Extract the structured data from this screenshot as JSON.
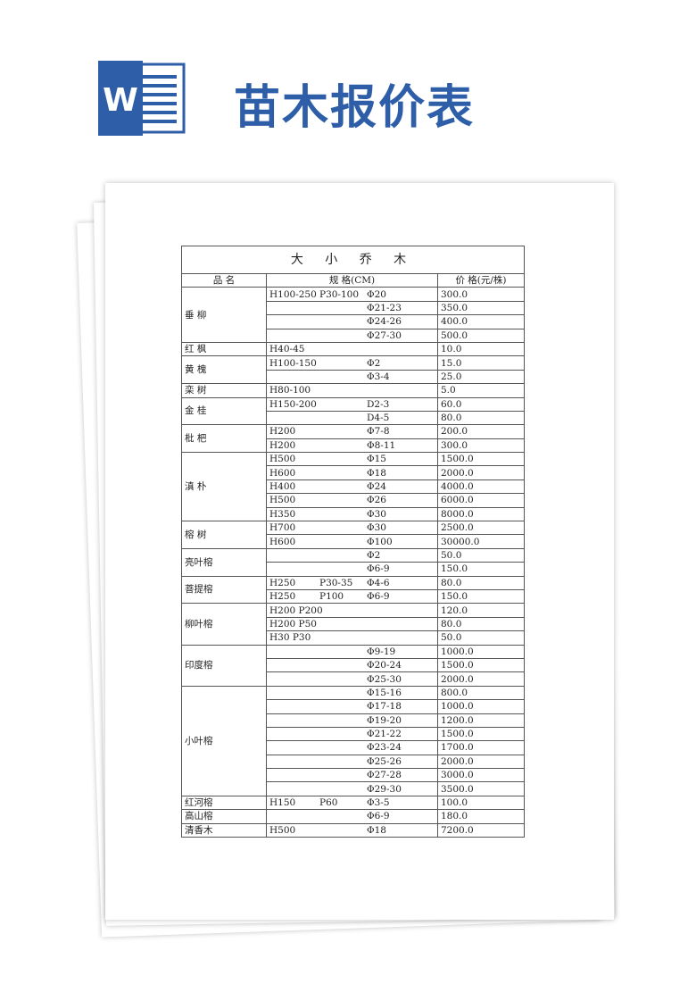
{
  "header": {
    "title": "苗木报价表",
    "icon": "word-icon",
    "accent": "#2e5ea8"
  },
  "table": {
    "title": "大 小 乔 木",
    "headers": [
      "品  名",
      "规  格(CM)",
      "价  格(元/株)"
    ],
    "groups": [
      {
        "name": "垂  柳",
        "rows": [
          [
            "H100-250",
            "P30-100",
            "Φ20",
            "300.0"
          ],
          [
            "",
            "",
            "Φ21-23",
            "350.0"
          ],
          [
            "",
            "",
            "Φ24-26",
            "400.0"
          ],
          [
            "",
            "",
            "Φ27-30",
            "500.0"
          ]
        ]
      },
      {
        "name": "红  枫",
        "rows": [
          [
            "H40-45",
            "",
            "",
            "10.0"
          ]
        ]
      },
      {
        "name": "黄  槐",
        "rows": [
          [
            "H100-150",
            "",
            "Φ2",
            "15.0"
          ],
          [
            "",
            "",
            "Φ3-4",
            "25.0"
          ]
        ]
      },
      {
        "name": "栾  树",
        "rows": [
          [
            "H80-100",
            "",
            "",
            "5.0"
          ]
        ]
      },
      {
        "name": "金  桂",
        "rows": [
          [
            "H150-200",
            "",
            "D2-3",
            "60.0"
          ],
          [
            "",
            "",
            "D4-5",
            "80.0"
          ]
        ]
      },
      {
        "name": "枇  杷",
        "rows": [
          [
            "H200",
            "",
            "Φ7-8",
            "200.0"
          ],
          [
            "H200",
            "",
            "Φ8-11",
            "300.0"
          ]
        ]
      },
      {
        "name": "滇  朴",
        "rows": [
          [
            "H500",
            "",
            "Φ15",
            "1500.0"
          ],
          [
            "H600",
            "",
            "Φ18",
            "2000.0"
          ],
          [
            "H400",
            "",
            "Φ24",
            "4000.0"
          ],
          [
            "H500",
            "",
            "Φ26",
            "6000.0"
          ],
          [
            "H350",
            "",
            "Φ30",
            "8000.0"
          ]
        ]
      },
      {
        "name": "榕  树",
        "rows": [
          [
            "H700",
            "",
            "Φ30",
            "2500.0"
          ],
          [
            "H600",
            "",
            "Φ100",
            "30000.0"
          ]
        ]
      },
      {
        "name": "亮叶榕",
        "rows": [
          [
            "",
            "",
            "Φ2",
            "50.0"
          ],
          [
            "",
            "",
            "Φ6-9",
            "150.0"
          ]
        ]
      },
      {
        "name": "菩提榕",
        "rows": [
          [
            "H250",
            "P30-35",
            "Φ4-6",
            "80.0"
          ],
          [
            "H250",
            "P100",
            "Φ6-9",
            "150.0"
          ]
        ]
      },
      {
        "name": "柳叶榕",
        "rows": [
          [
            "H200 P200",
            "",
            "",
            "120.0"
          ],
          [
            "H200 P50",
            "",
            "",
            "80.0"
          ],
          [
            "H30  P30",
            "",
            "",
            "50.0"
          ]
        ]
      },
      {
        "name": "印度榕",
        "rows": [
          [
            "",
            "",
            "Φ9-19",
            "1000.0"
          ],
          [
            "",
            "",
            "Φ20-24",
            "1500.0"
          ],
          [
            "",
            "",
            "Φ25-30",
            "2000.0"
          ]
        ]
      },
      {
        "name": "小叶榕",
        "rows": [
          [
            "",
            "",
            "Φ15-16",
            "800.0"
          ],
          [
            "",
            "",
            "Φ17-18",
            "1000.0"
          ],
          [
            "",
            "",
            "Φ19-20",
            "1200.0"
          ],
          [
            "",
            "",
            "Φ21-22",
            "1500.0"
          ],
          [
            "",
            "",
            "Φ23-24",
            "1700.0"
          ],
          [
            "",
            "",
            "Φ25-26",
            "2000.0"
          ],
          [
            "",
            "",
            "Φ27-28",
            "3000.0"
          ],
          [
            "",
            "",
            "Φ29-30",
            "3500.0"
          ]
        ]
      },
      {
        "name": "红河榕",
        "rows": [
          [
            "H150",
            "P60",
            "Φ3-5",
            "100.0"
          ]
        ]
      },
      {
        "name": "高山榕",
        "rows": [
          [
            "",
            "",
            "Φ6-9",
            "180.0"
          ]
        ]
      },
      {
        "name": "清香木",
        "rows": [
          [
            "H500",
            "",
            "Φ18",
            "7200.0"
          ]
        ]
      }
    ]
  }
}
